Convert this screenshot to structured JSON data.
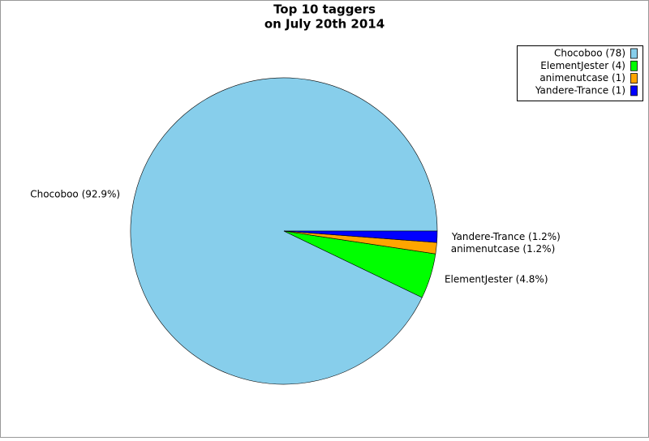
{
  "chart_data": {
    "type": "pie",
    "title": "Top 10 taggers",
    "subtitle": "on July 20th 2014",
    "categories": [
      "Chocoboo",
      "ElementJester",
      "animenutcase",
      "Yandere-Trance"
    ],
    "values": [
      78,
      4,
      1,
      1
    ],
    "value_labels": [
      "Chocoboo (92.9%)",
      "ElementJester (4.8%)",
      "animenutcase (1.2%)",
      "Yandere-Trance (1.2%)"
    ],
    "legend_labels": [
      "Chocoboo (78)",
      "ElementJester (4)",
      "animenutcase (1)",
      "Yandere-Trance (1)"
    ],
    "colors": [
      "#87ceeb",
      "#00ff00",
      "#ffa500",
      "#0000ff"
    ],
    "legend": "upper right"
  }
}
